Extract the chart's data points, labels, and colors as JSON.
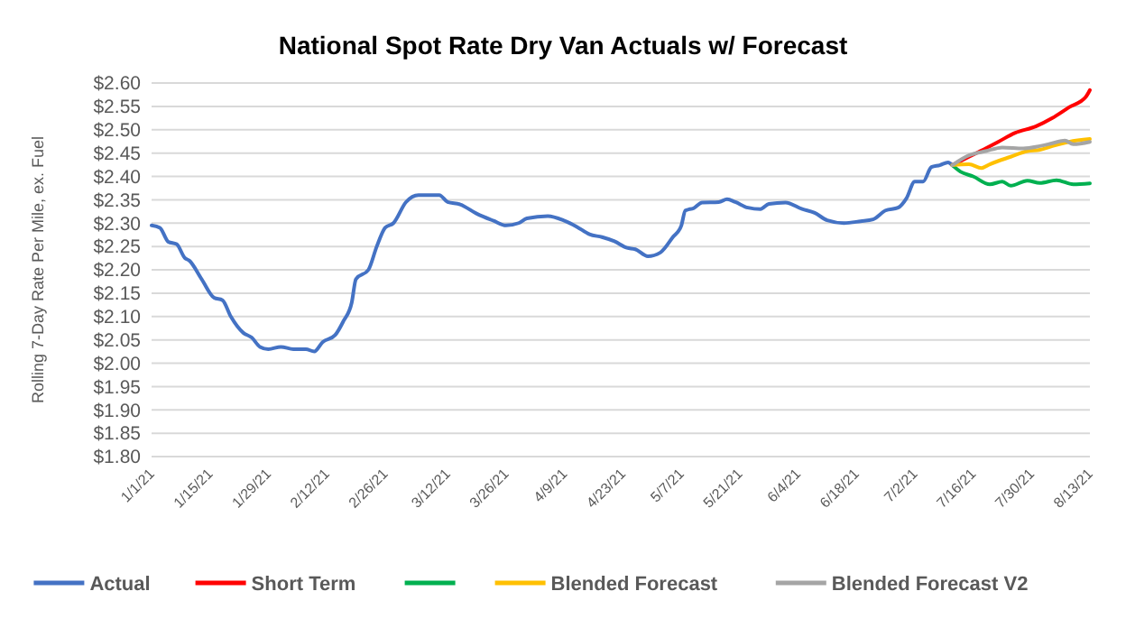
{
  "chart_data": {
    "type": "line",
    "title": "National Spot Rate Dry Van Actuals w/ Forecast",
    "ylabel": "Rolling 7-Day Rate Per Mile, ex. Fuel",
    "xlim": [
      "--01-01",
      "--08-13"
    ],
    "xticks": [
      {
        "value": "--01-01",
        "label": "1/1/21"
      },
      {
        "value": "--01-15",
        "label": "1/15/21"
      },
      {
        "value": "--01-29",
        "label": "1/29/21"
      },
      {
        "value": "--02-12",
        "label": "2/12/21"
      },
      {
        "value": "--02-26",
        "label": "2/26/21"
      },
      {
        "value": "--03-12",
        "label": "3/12/21"
      },
      {
        "value": "--03-26",
        "label": "3/26/21"
      },
      {
        "value": "--04-09",
        "label": "4/9/21"
      },
      {
        "value": "--04-23",
        "label": "4/23/21"
      },
      {
        "value": "--05-07",
        "label": "5/7/21"
      },
      {
        "value": "--05-21",
        "label": "5/21/21"
      },
      {
        "value": "--06-04",
        "label": "6/4/21"
      },
      {
        "value": "--06-18",
        "label": "6/18/21"
      },
      {
        "value": "--07-02",
        "label": "7/2/21"
      },
      {
        "value": "--07-16",
        "label": "7/16/21"
      },
      {
        "value": "--07-30",
        "label": "7/30/21"
      },
      {
        "value": "--08-13",
        "label": "8/13/21"
      }
    ],
    "ylim": [
      1.8,
      2.6
    ],
    "yticks": [
      {
        "value": 1.8,
        "label": "$1.80"
      },
      {
        "value": 1.85,
        "label": "$1.85"
      },
      {
        "value": 1.9,
        "label": "$1.90"
      },
      {
        "value": 1.95,
        "label": "$1.95"
      },
      {
        "value": 2.0,
        "label": "$2.00"
      },
      {
        "value": 2.05,
        "label": "$2.05"
      },
      {
        "value": 2.1,
        "label": "$2.10"
      },
      {
        "value": 2.15,
        "label": "$2.15"
      },
      {
        "value": 2.2,
        "label": "$2.20"
      },
      {
        "value": 2.25,
        "label": "$2.25"
      },
      {
        "value": 2.3,
        "label": "$2.30"
      },
      {
        "value": 2.35,
        "label": "$2.35"
      },
      {
        "value": 2.4,
        "label": "$2.40"
      },
      {
        "value": 2.45,
        "label": "$2.45"
      },
      {
        "value": 2.5,
        "label": "$2.50"
      },
      {
        "value": 2.55,
        "label": "$2.55"
      },
      {
        "value": 2.6,
        "label": "$2.60"
      }
    ],
    "grid": "y",
    "legend": "bottom",
    "line_style": "solid",
    "marker": "none",
    "series": [
      {
        "name": "Actual",
        "color": "#4472c4",
        "x": [
          "--01-01",
          "--01-03",
          "--01-05",
          "--01-07",
          "--01-09",
          "--01-10",
          "--01-13",
          "--01-16",
          "--01-18",
          "--01-20",
          "--01-23",
          "--01-25",
          "--01-27",
          "--01-29",
          "--02-01",
          "--02-04",
          "--02-07",
          "--02-09",
          "--02-11",
          "--02-14",
          "--02-16",
          "--02-18",
          "--02-19",
          "--02-22",
          "--02-24",
          "--02-26",
          "--02-28",
          "--03-02",
          "--03-05",
          "--03-07",
          "--03-10",
          "--03-12",
          "--03-15",
          "--03-19",
          "--03-23",
          "--03-26",
          "--03-29",
          "--03-31",
          "--04-05",
          "--04-09",
          "--04-12",
          "--04-15",
          "--04-18",
          "--04-21",
          "--04-24",
          "--04-26",
          "--04-29",
          "--05-02",
          "--05-05",
          "--05-07",
          "--05-08",
          "--05-10",
          "--05-12",
          "--05-16",
          "--05-18",
          "--05-20",
          "--05-23",
          "--05-26",
          "--05-28",
          "--06-01",
          "--06-05",
          "--06-08",
          "--06-11",
          "--06-15",
          "--06-19",
          "--06-22",
          "--06-25",
          "--06-28",
          "--06-30",
          "--07-02",
          "--07-04",
          "--07-06",
          "--07-08",
          "--07-10",
          "--07-11"
        ],
        "values": [
          2.295,
          2.29,
          2.26,
          2.255,
          2.225,
          2.22,
          2.18,
          2.14,
          2.135,
          2.1,
          2.065,
          2.055,
          2.035,
          2.03,
          2.035,
          2.03,
          2.03,
          2.025,
          2.045,
          2.06,
          2.09,
          2.13,
          2.18,
          2.2,
          2.25,
          2.29,
          2.3,
          2.345,
          2.36,
          2.36,
          2.36,
          2.345,
          2.34,
          2.32,
          2.305,
          2.295,
          2.3,
          2.31,
          2.315,
          2.305,
          2.292,
          2.276,
          2.27,
          2.261,
          2.247,
          2.244,
          2.229,
          2.237,
          2.27,
          2.294,
          2.327,
          2.332,
          2.344,
          2.345,
          2.351,
          2.345,
          2.333,
          2.33,
          2.341,
          2.344,
          2.33,
          2.322,
          2.306,
          2.3,
          2.304,
          2.308,
          2.327,
          2.333,
          2.353,
          2.389,
          2.389,
          2.42,
          2.424,
          2.43,
          2.424
        ]
      },
      {
        "name": "Short Term",
        "color": "#ff0000",
        "x": [
          "--07-11",
          "--07-15",
          "--07-19",
          "--07-22",
          "--07-26",
          "--07-31",
          "--08-04",
          "--08-08",
          "--08-12",
          "--08-13"
        ],
        "values": [
          2.424,
          2.442,
          2.46,
          2.474,
          2.493,
          2.507,
          2.525,
          2.548,
          2.57,
          2.585
        ]
      },
      {
        "color": "#00b050",
        "x": [
          "--07-11",
          "--07-13",
          "--07-16",
          "--07-20",
          "--07-23",
          "--07-25",
          "--07-29",
          "--08-01",
          "--08-05",
          "--08-09",
          "--08-13"
        ],
        "values": [
          2.424,
          2.41,
          2.4,
          2.383,
          2.389,
          2.38,
          2.391,
          2.386,
          2.392,
          2.383,
          2.385
        ]
      },
      {
        "name": "Blended Forecast",
        "color": "#ffc000",
        "x": [
          "--07-11",
          "--07-15",
          "--07-18",
          "--07-20",
          "--07-25",
          "--07-29",
          "--08-01",
          "--08-04",
          "--08-08",
          "--08-13"
        ],
        "values": [
          2.424,
          2.426,
          2.418,
          2.426,
          2.442,
          2.454,
          2.457,
          2.465,
          2.474,
          2.48
        ]
      },
      {
        "name": "Blended Forecast V2",
        "color": "#a5a5a5",
        "x": [
          "--07-11",
          "--07-15",
          "--07-19",
          "--07-23",
          "--07-28",
          "--08-01",
          "--08-04",
          "--08-07",
          "--08-09",
          "--08-13"
        ],
        "values": [
          2.424,
          2.445,
          2.454,
          2.462,
          2.46,
          2.465,
          2.471,
          2.477,
          2.469,
          2.474
        ]
      }
    ]
  }
}
